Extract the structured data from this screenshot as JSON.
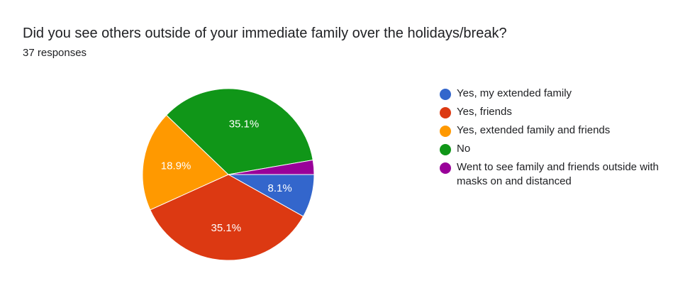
{
  "header": {
    "title": "Did you see others outside of your immediate family over the holidays/break?",
    "subtitle": "37 responses"
  },
  "chart_data": {
    "type": "pie",
    "title": "Did you see others outside of your immediate family over the holidays/break?",
    "total_responses": 37,
    "slices": [
      {
        "label": "Yes, my extended family",
        "value": 3,
        "percent_label": "8.1%",
        "color": "#3366cc"
      },
      {
        "label": "Yes, friends",
        "value": 13,
        "percent_label": "35.1%",
        "color": "#dc3912"
      },
      {
        "label": "Yes, extended family and friends",
        "value": 7,
        "percent_label": "18.9%",
        "color": "#ff9900"
      },
      {
        "label": "No",
        "value": 13,
        "percent_label": "35.1%",
        "color": "#109618"
      },
      {
        "label": "Went to see family and friends outside with masks on and distanced",
        "value": 1,
        "percent_label": "",
        "color": "#990099"
      }
    ],
    "legend_position": "right"
  }
}
